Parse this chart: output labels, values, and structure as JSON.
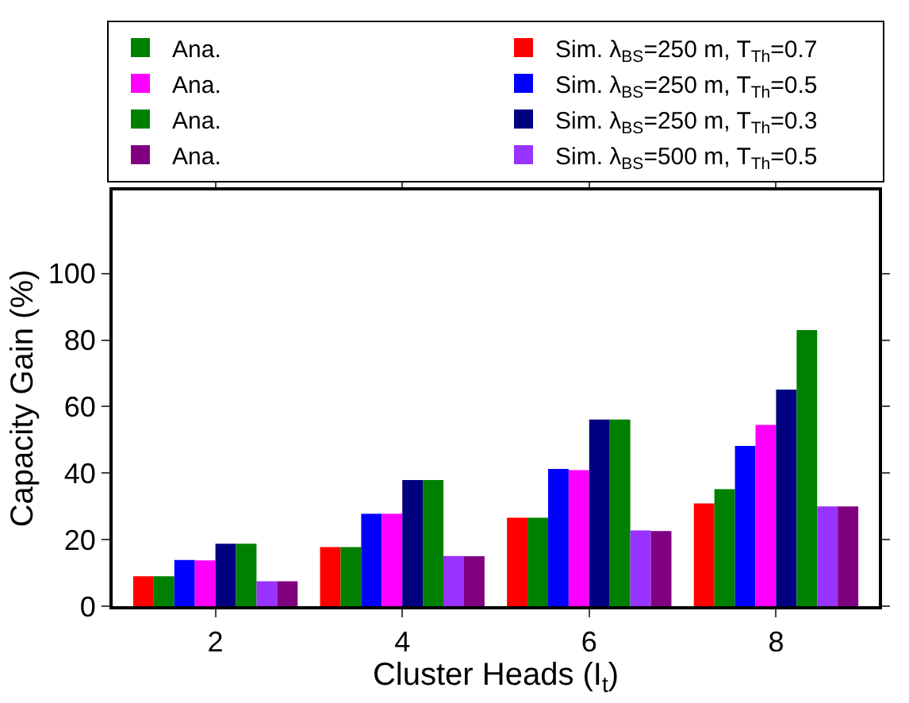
{
  "chart_data": {
    "type": "bar",
    "xlabel": "Cluster Heads (I$_{t}$)",
    "ylabel": "Capacity Gain (%)",
    "categories": [
      "2",
      "4",
      "6",
      "8"
    ],
    "series": [
      {
        "name": "Sim. λ$_{BS}$=250 m, T$_{Th}$=0.7",
        "color": "#ff0000",
        "values": [
          9,
          17.8,
          26.6,
          30.9
        ]
      },
      {
        "name": "Ana.",
        "color": "#008000",
        "values": [
          9,
          17.8,
          26.6,
          35.2
        ]
      },
      {
        "name": "Sim. λ$_{BS}$=250 m, T$_{Th}$=0.5",
        "color": "#0000ff",
        "values": [
          13.9,
          27.8,
          41.3,
          48.2
        ]
      },
      {
        "name": "Ana.",
        "color": "#ff00ff",
        "values": [
          13.8,
          27.8,
          40.9,
          54.5
        ]
      },
      {
        "name": "Sim. λ$_{BS}$=250 m, T$_{Th}$=0.3",
        "color": "#000080",
        "values": [
          18.8,
          37.9,
          56.1,
          65.1
        ]
      },
      {
        "name": "Ana.",
        "color": "#008000",
        "values": [
          18.8,
          37.9,
          56.1,
          83
        ]
      },
      {
        "name": "Sim. λ$_{BS}$=500 m, T$_{Th}$=0.5",
        "color": "#9933ff",
        "values": [
          7.5,
          15.1,
          22.8,
          30
        ]
      },
      {
        "name": "Ana.",
        "color": "#800080",
        "values": [
          7.5,
          15,
          22.6,
          30
        ]
      }
    ],
    "ylim": [
      0,
      125
    ],
    "yticks": [
      0,
      20,
      40,
      60,
      80,
      100
    ],
    "legend": "top"
  }
}
